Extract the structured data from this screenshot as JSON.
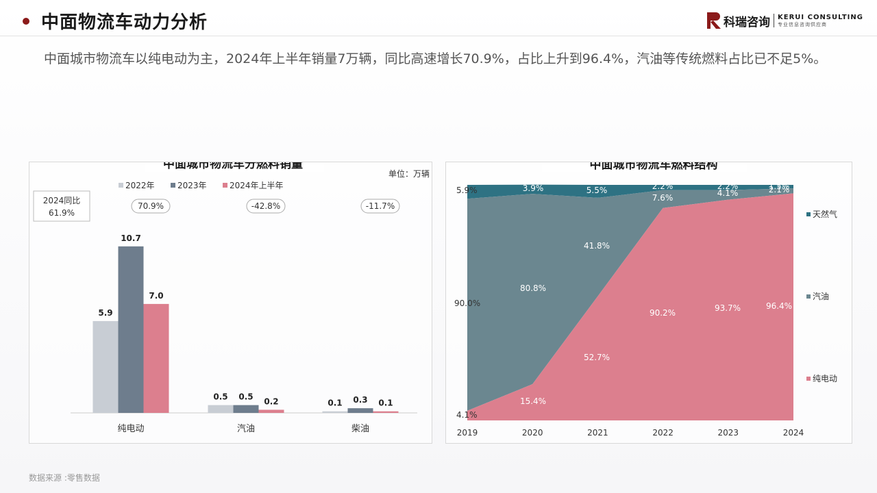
{
  "header": {
    "title": "中面物流车动力分析",
    "logo_name": "科瑞咨询",
    "logo_en": "KERUI CONSULTING",
    "logo_tagline": "专业信息咨询供应商"
  },
  "summary": "中面城市物流车以纯电动为主，2024年上半年销量7万辆，同比高速增长70.9%，占比上升到96.4%，汽油等传统燃料占比已不足5%。",
  "source": "数据来源 :零售数据",
  "colors": {
    "brand": "#8b1a1a",
    "s2022": "#c8cdd4",
    "s2023": "#6e7d8d",
    "s2024": "#dc7f8e",
    "electric": "#dc7f8e",
    "gasoline": "#6b8790",
    "cng": "#2e7283"
  },
  "chart_data": [
    {
      "type": "bar",
      "title": "中面城市物流车分燃料销量",
      "unit": "单位：万辆",
      "categories": [
        "纯电动",
        "汽油",
        "柴油"
      ],
      "series": [
        {
          "name": "2022年",
          "values": [
            5.9,
            0.5,
            0.1
          ]
        },
        {
          "name": "2023年",
          "values": [
            10.7,
            0.5,
            0.3
          ]
        },
        {
          "name": "2024年上半年",
          "values": [
            7.0,
            0.2,
            0.1
          ]
        }
      ],
      "growth_labels": [
        "70.9%",
        "-42.8%",
        "-11.7%"
      ],
      "callout": {
        "line1": "2024同比",
        "line2": "61.9%"
      },
      "ylim": [
        0,
        11
      ]
    },
    {
      "type": "area",
      "title": "中面城市物流车燃料结构",
      "x": [
        "2019",
        "2020",
        "2021",
        "2022",
        "2023",
        "2024"
      ],
      "series": [
        {
          "name": "纯电动",
          "values": [
            4.1,
            15.4,
            52.7,
            90.2,
            93.7,
            96.4
          ],
          "labels": [
            "4.1%",
            "15.4%",
            "52.7%",
            "90.2%",
            "93.7%",
            "96.4%"
          ]
        },
        {
          "name": "汽油",
          "values": [
            90.0,
            80.8,
            41.8,
            7.6,
            4.1,
            2.1
          ],
          "labels": [
            "90.0%",
            "80.8%",
            "41.8%",
            "7.6%",
            "4.1%",
            "2.1%"
          ]
        },
        {
          "name": "天然气",
          "values": [
            5.9,
            3.9,
            5.5,
            2.2,
            2.2,
            1.5
          ],
          "labels": [
            "5.9%",
            "3.9%",
            "5.5%",
            "2.2%",
            "2.2%",
            "1.5%"
          ]
        }
      ],
      "legend": [
        "天然气",
        "汽油",
        "纯电动"
      ],
      "legend_position": "right",
      "ylim": [
        0,
        100
      ]
    }
  ]
}
